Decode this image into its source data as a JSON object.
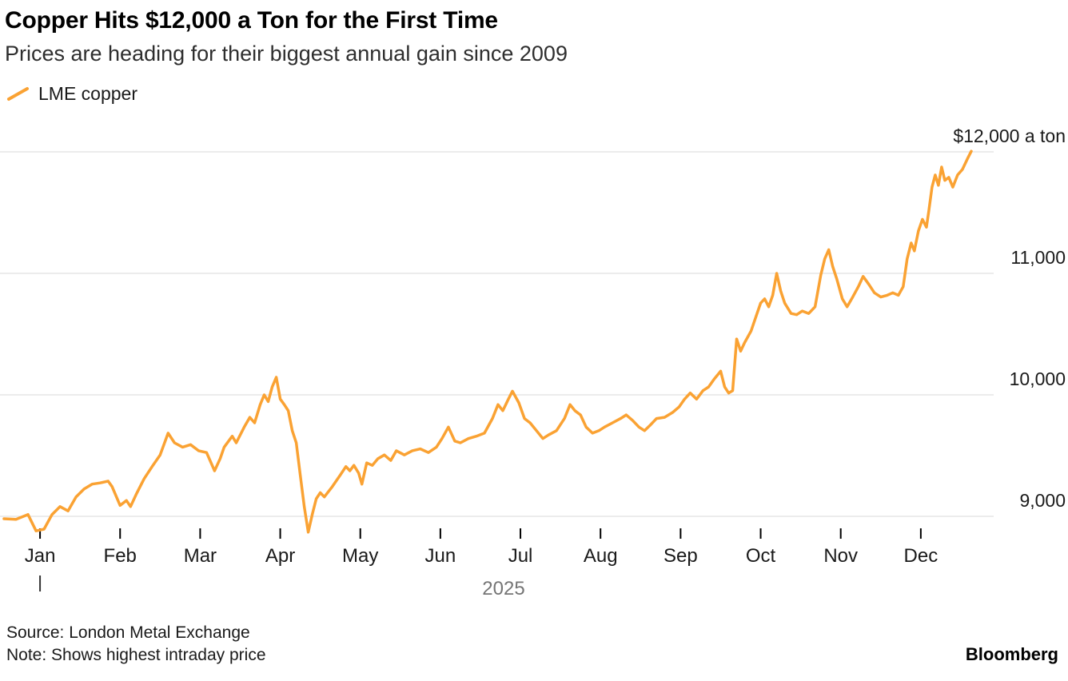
{
  "header": {
    "title": "Copper Hits $12,000 a Ton for the First Time",
    "subtitle": "Prices are heading for their biggest annual gain since 2009"
  },
  "legend": {
    "label": "LME copper",
    "color": "#FAA233"
  },
  "chart_data": {
    "type": "line",
    "title": "Copper Hits $12,000 a Ton for the First Time",
    "subtitle": "Prices are heading for their biggest annual gain since 2009",
    "xlabel": "2025",
    "ylabel": "",
    "year_label": "2025",
    "grid": "horizontal",
    "grid_color": "#d9d9d9",
    "axis_color": "#1a1a1a",
    "year_color": "#757575",
    "line_color": "#FAA233",
    "legend_position": "top-left",
    "xlim": [
      0,
      12.3
    ],
    "ylim": [
      8830,
      12210
    ],
    "x_ticks": [
      "Jan",
      "Feb",
      "Mar",
      "Apr",
      "May",
      "Jun",
      "Jul",
      "Aug",
      "Sep",
      "Oct",
      "Nov",
      "Dec"
    ],
    "y_ticks": [
      {
        "value": 12000,
        "label": "$12,000 a ton"
      },
      {
        "value": 11000,
        "label": "11,000"
      },
      {
        "value": 10000,
        "label": "10,000"
      },
      {
        "value": 9000,
        "label": "9,000"
      }
    ],
    "series": [
      {
        "name": "LME copper",
        "color": "#FAA233",
        "points": [
          [
            0.0,
            8980
          ],
          [
            0.15,
            8975
          ],
          [
            0.3,
            9015
          ],
          [
            0.4,
            8880
          ],
          [
            0.5,
            8895
          ],
          [
            0.6,
            9015
          ],
          [
            0.7,
            9080
          ],
          [
            0.8,
            9045
          ],
          [
            0.9,
            9160
          ],
          [
            1.0,
            9225
          ],
          [
            1.1,
            9265
          ],
          [
            1.2,
            9275
          ],
          [
            1.3,
            9290
          ],
          [
            1.35,
            9245
          ],
          [
            1.45,
            9090
          ],
          [
            1.53,
            9130
          ],
          [
            1.58,
            9080
          ],
          [
            1.65,
            9180
          ],
          [
            1.75,
            9310
          ],
          [
            1.85,
            9410
          ],
          [
            1.95,
            9505
          ],
          [
            2.05,
            9685
          ],
          [
            2.13,
            9605
          ],
          [
            2.23,
            9570
          ],
          [
            2.33,
            9590
          ],
          [
            2.43,
            9540
          ],
          [
            2.53,
            9525
          ],
          [
            2.63,
            9375
          ],
          [
            2.7,
            9475
          ],
          [
            2.75,
            9570
          ],
          [
            2.85,
            9660
          ],
          [
            2.9,
            9605
          ],
          [
            3.0,
            9735
          ],
          [
            3.07,
            9815
          ],
          [
            3.13,
            9770
          ],
          [
            3.2,
            9920
          ],
          [
            3.25,
            10000
          ],
          [
            3.3,
            9945
          ],
          [
            3.35,
            10065
          ],
          [
            3.4,
            10145
          ],
          [
            3.45,
            9965
          ],
          [
            3.5,
            9920
          ],
          [
            3.55,
            9870
          ],
          [
            3.6,
            9705
          ],
          [
            3.65,
            9605
          ],
          [
            3.7,
            9340
          ],
          [
            3.75,
            9080
          ],
          [
            3.8,
            8870
          ],
          [
            3.85,
            9015
          ],
          [
            3.9,
            9145
          ],
          [
            3.95,
            9195
          ],
          [
            4.0,
            9160
          ],
          [
            4.1,
            9245
          ],
          [
            4.2,
            9340
          ],
          [
            4.27,
            9410
          ],
          [
            4.32,
            9375
          ],
          [
            4.37,
            9420
          ],
          [
            4.43,
            9355
          ],
          [
            4.47,
            9265
          ],
          [
            4.53,
            9440
          ],
          [
            4.6,
            9420
          ],
          [
            4.67,
            9475
          ],
          [
            4.75,
            9505
          ],
          [
            4.83,
            9460
          ],
          [
            4.9,
            9540
          ],
          [
            5.0,
            9505
          ],
          [
            5.1,
            9540
          ],
          [
            5.2,
            9555
          ],
          [
            5.3,
            9525
          ],
          [
            5.4,
            9570
          ],
          [
            5.47,
            9640
          ],
          [
            5.55,
            9735
          ],
          [
            5.63,
            9620
          ],
          [
            5.7,
            9605
          ],
          [
            5.8,
            9640
          ],
          [
            5.9,
            9660
          ],
          [
            6.0,
            9685
          ],
          [
            6.1,
            9805
          ],
          [
            6.17,
            9920
          ],
          [
            6.23,
            9870
          ],
          [
            6.3,
            9965
          ],
          [
            6.35,
            10030
          ],
          [
            6.43,
            9935
          ],
          [
            6.5,
            9805
          ],
          [
            6.57,
            9770
          ],
          [
            6.65,
            9705
          ],
          [
            6.73,
            9640
          ],
          [
            6.8,
            9670
          ],
          [
            6.9,
            9705
          ],
          [
            7.0,
            9805
          ],
          [
            7.07,
            9920
          ],
          [
            7.13,
            9870
          ],
          [
            7.2,
            9835
          ],
          [
            7.27,
            9735
          ],
          [
            7.35,
            9685
          ],
          [
            7.43,
            9705
          ],
          [
            7.5,
            9735
          ],
          [
            7.6,
            9770
          ],
          [
            7.7,
            9805
          ],
          [
            7.77,
            9835
          ],
          [
            7.85,
            9790
          ],
          [
            7.93,
            9735
          ],
          [
            8.0,
            9705
          ],
          [
            8.07,
            9750
          ],
          [
            8.15,
            9805
          ],
          [
            8.25,
            9815
          ],
          [
            8.35,
            9855
          ],
          [
            8.43,
            9900
          ],
          [
            8.5,
            9965
          ],
          [
            8.57,
            10015
          ],
          [
            8.65,
            9965
          ],
          [
            8.73,
            10035
          ],
          [
            8.8,
            10065
          ],
          [
            8.87,
            10130
          ],
          [
            8.95,
            10195
          ],
          [
            9.0,
            10065
          ],
          [
            9.05,
            10015
          ],
          [
            9.1,
            10035
          ],
          [
            9.15,
            10460
          ],
          [
            9.2,
            10360
          ],
          [
            9.25,
            10430
          ],
          [
            9.33,
            10525
          ],
          [
            9.4,
            10660
          ],
          [
            9.45,
            10755
          ],
          [
            9.5,
            10790
          ],
          [
            9.55,
            10725
          ],
          [
            9.6,
            10820
          ],
          [
            9.65,
            11000
          ],
          [
            9.7,
            10855
          ],
          [
            9.75,
            10755
          ],
          [
            9.83,
            10670
          ],
          [
            9.9,
            10660
          ],
          [
            9.97,
            10690
          ],
          [
            10.05,
            10670
          ],
          [
            10.13,
            10725
          ],
          [
            10.2,
            10985
          ],
          [
            10.25,
            11120
          ],
          [
            10.3,
            11195
          ],
          [
            10.35,
            11055
          ],
          [
            10.4,
            10955
          ],
          [
            10.47,
            10790
          ],
          [
            10.53,
            10725
          ],
          [
            10.6,
            10805
          ],
          [
            10.67,
            10890
          ],
          [
            10.73,
            10975
          ],
          [
            10.8,
            10910
          ],
          [
            10.87,
            10840
          ],
          [
            10.95,
            10805
          ],
          [
            11.03,
            10820
          ],
          [
            11.1,
            10840
          ],
          [
            11.17,
            10820
          ],
          [
            11.23,
            10890
          ],
          [
            11.28,
            11120
          ],
          [
            11.33,
            11250
          ],
          [
            11.37,
            11185
          ],
          [
            11.42,
            11350
          ],
          [
            11.47,
            11445
          ],
          [
            11.52,
            11380
          ],
          [
            11.55,
            11515
          ],
          [
            11.59,
            11710
          ],
          [
            11.63,
            11810
          ],
          [
            11.67,
            11725
          ],
          [
            11.71,
            11875
          ],
          [
            11.75,
            11765
          ],
          [
            11.8,
            11790
          ],
          [
            11.85,
            11710
          ],
          [
            11.91,
            11810
          ],
          [
            11.97,
            11855
          ],
          [
            12.03,
            11940
          ],
          [
            12.08,
            12005
          ]
        ]
      }
    ]
  },
  "footer": {
    "source": "Source: London Metal Exchange",
    "note": "Note: Shows highest intraday price",
    "brand": "Bloomberg"
  }
}
